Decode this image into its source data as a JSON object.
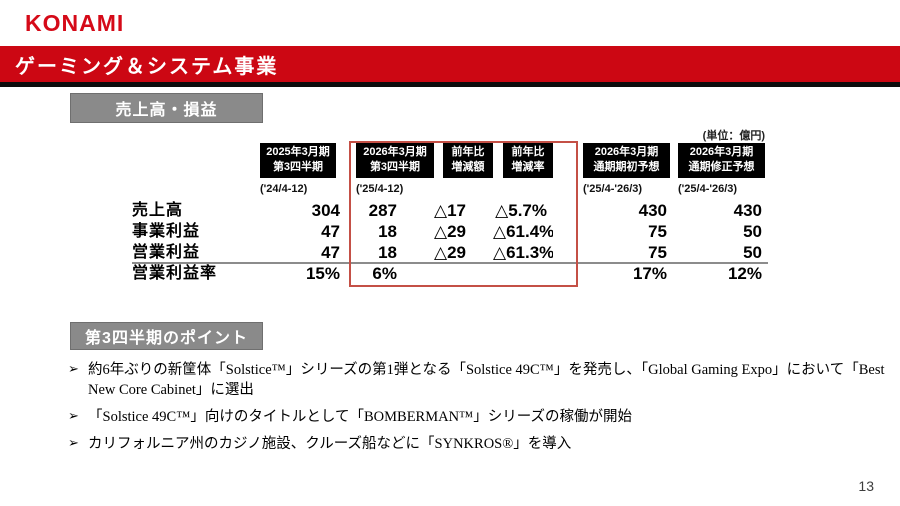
{
  "logo": "KONAMI",
  "banner": {
    "title": "ゲーミング＆システム事業"
  },
  "sections": {
    "financials": {
      "heading": "売上高・損益",
      "unit_note": "(単位：億円)"
    },
    "points": {
      "heading": "第3四半期のポイント"
    }
  },
  "table": {
    "columns": [
      {
        "line1": "2025年3月期",
        "line2": "第3四半期",
        "sub": "('24/4-12)"
      },
      {
        "line1": "2026年3月期",
        "line2": "第3四半期",
        "sub": "('25/4-12)"
      },
      {
        "line1": "前年比",
        "line2": "増減額",
        "sub": ""
      },
      {
        "line1": "前年比",
        "line2": "増減率",
        "sub": ""
      },
      {
        "line1": "2026年3月期",
        "line2": "通期期初予想",
        "sub": "('25/4-'26/3)"
      },
      {
        "line1": "2026年3月期",
        "line2": "通期修正予想",
        "sub": "('25/4-'26/3)"
      }
    ],
    "rows": [
      {
        "label": "売上高",
        "values": [
          "304",
          "287",
          "△17",
          "△5.7%",
          "430",
          "430"
        ]
      },
      {
        "label": "事業利益",
        "values": [
          "47",
          "18",
          "△29",
          "△61.4%",
          "75",
          "50"
        ]
      },
      {
        "label": "営業利益",
        "values": [
          "47",
          "18",
          "△29",
          "△61.3%",
          "75",
          "50"
        ]
      },
      {
        "label": "営業利益率",
        "values": [
          "15%",
          "6%",
          "",
          "",
          "17%",
          "12%"
        ]
      }
    ]
  },
  "bullets": {
    "marker": "➢",
    "items": [
      "約6年ぶりの新筐体「Solstice™」シリーズの第1弾となる「Solstice 49C™」を発売し、「Global Gaming Expo」において「Best New Core Cabinet」に選出",
      "「Solstice 49C™」向けのタイトルとして「BOMBERMAN™」シリーズの稼働が開始",
      "カリフォルニア州のカジノ施設、クルーズ船などに「SYNKROS®」を導入"
    ]
  },
  "page": {
    "number": "13"
  },
  "colors": {
    "banner_red": "#cc0713",
    "logo_red": "#d50a18",
    "heading_gray": "#8a8a8a",
    "highlight_border_red": "#c45046",
    "header_box_black": "#000000"
  }
}
